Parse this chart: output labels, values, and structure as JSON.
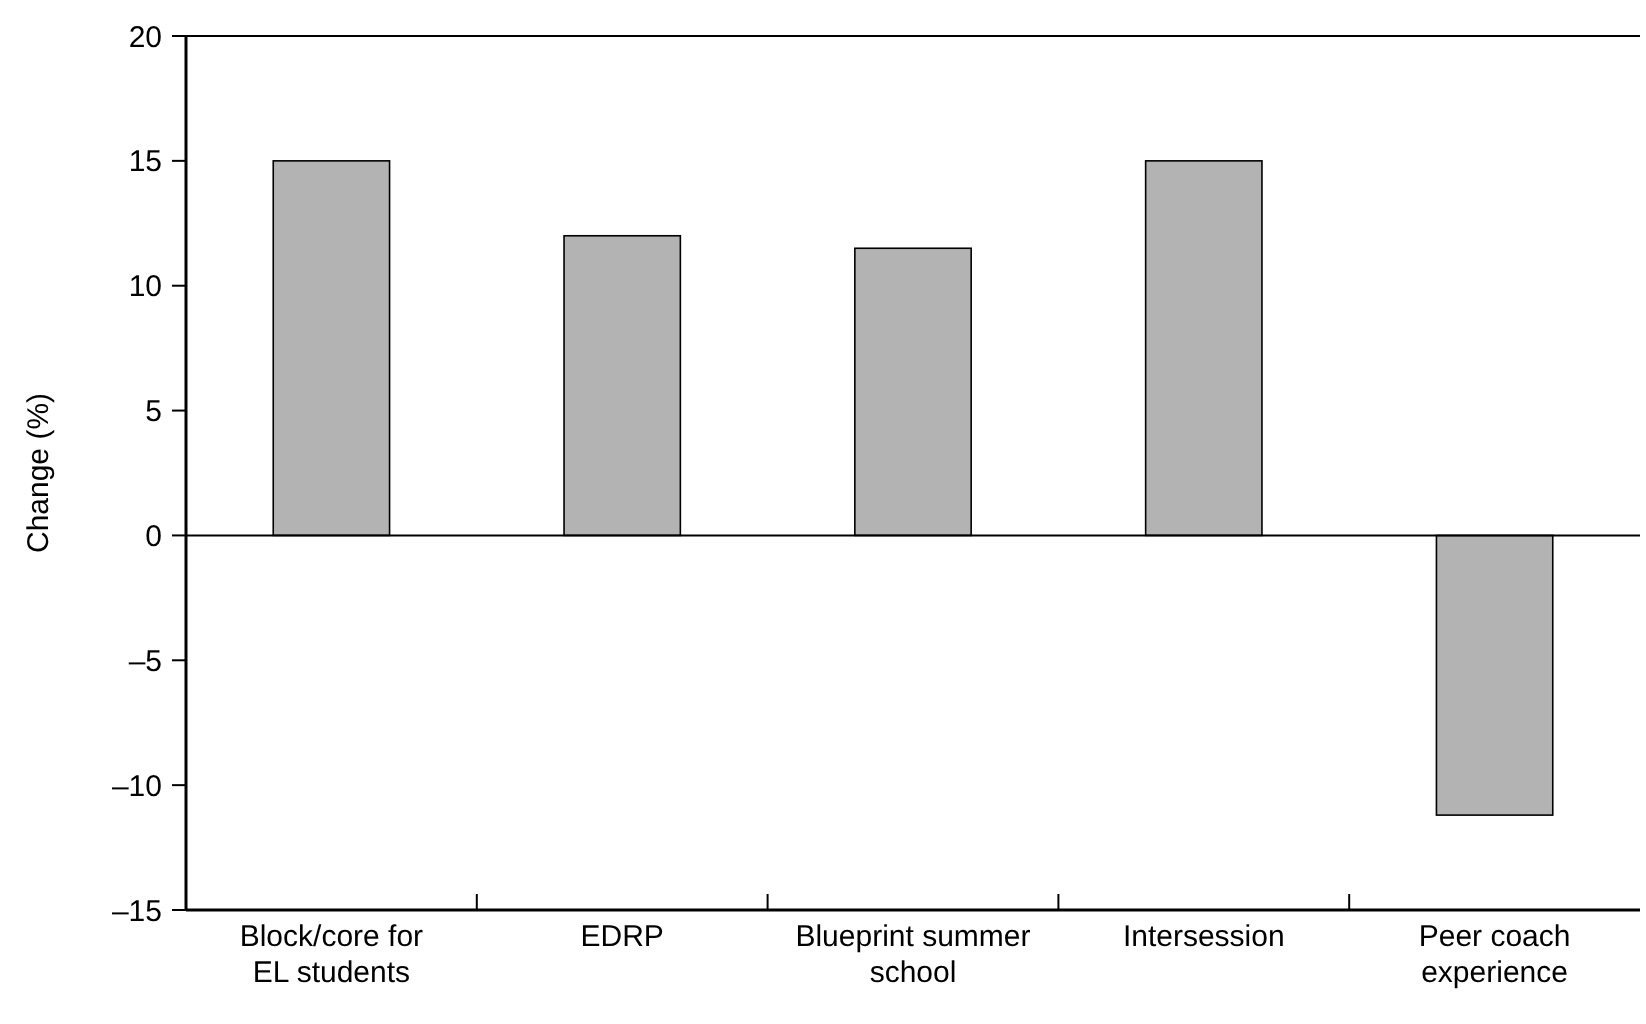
{
  "chart_data": {
    "type": "bar",
    "ylabel": "Change (%)",
    "categories": [
      "Block/core for EL students",
      "EDRP",
      "Blueprint summer school",
      "Intersession",
      "Peer coach experience"
    ],
    "values": [
      15,
      12,
      11.5,
      15,
      -11.2
    ],
    "color": "#b3b3b3",
    "ylim": [
      -15,
      20
    ],
    "yticks": [
      {
        "value": -15,
        "label": "–15"
      },
      {
        "value": -10,
        "label": "–10"
      },
      {
        "value": -5,
        "label": "–5"
      },
      0,
      5,
      10,
      15,
      20
    ],
    "ref_lines": [
      {
        "axis": "y",
        "value": 0,
        "color": "#000000"
      }
    ],
    "grid": false
  }
}
